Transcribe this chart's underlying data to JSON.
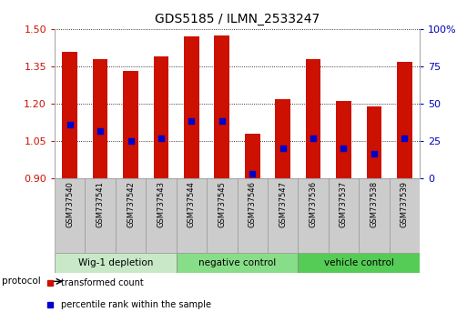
{
  "title": "GDS5185 / ILMN_2533247",
  "samples": [
    "GSM737540",
    "GSM737541",
    "GSM737542",
    "GSM737543",
    "GSM737544",
    "GSM737545",
    "GSM737546",
    "GSM737547",
    "GSM737536",
    "GSM737537",
    "GSM737538",
    "GSM737539"
  ],
  "bar_tops": [
    1.41,
    1.38,
    1.33,
    1.39,
    1.47,
    1.475,
    1.08,
    1.22,
    1.38,
    1.21,
    1.19,
    1.37
  ],
  "bar_bottoms": [
    0.9,
    0.9,
    0.9,
    0.9,
    0.9,
    0.9,
    0.9,
    0.9,
    0.9,
    0.9,
    0.9,
    0.9
  ],
  "blue_dots": [
    1.115,
    1.09,
    1.05,
    1.06,
    1.13,
    1.13,
    0.92,
    1.02,
    1.06,
    1.02,
    1.0,
    1.06
  ],
  "ylim_left": [
    0.9,
    1.5
  ],
  "ylim_right": [
    0,
    100
  ],
  "yticks_left": [
    0.9,
    1.05,
    1.2,
    1.35,
    1.5
  ],
  "yticks_right": [
    0,
    25,
    50,
    75,
    100
  ],
  "bar_color": "#cc1100",
  "dot_color": "#0000cc",
  "groups": [
    {
      "label": "Wig-1 depletion",
      "indices": [
        0,
        1,
        2,
        3
      ],
      "color": "#c8e8c8"
    },
    {
      "label": "negative control",
      "indices": [
        4,
        5,
        6,
        7
      ],
      "color": "#88dd88"
    },
    {
      "label": "vehicle control",
      "indices": [
        8,
        9,
        10,
        11
      ],
      "color": "#55cc55"
    }
  ],
  "protocol_label": "protocol",
  "legend_items": [
    {
      "label": "transformed count",
      "color": "#cc1100"
    },
    {
      "label": "percentile rank within the sample",
      "color": "#0000cc"
    }
  ],
  "background_color": "#ffffff",
  "tick_label_color_left": "#cc1100",
  "tick_label_color_right": "#0000bb",
  "sample_box_color": "#cccccc",
  "sample_box_edge": "#999999"
}
